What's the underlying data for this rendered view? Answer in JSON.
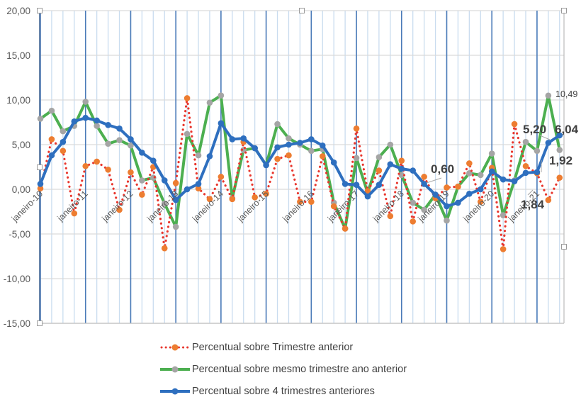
{
  "chart_data": {
    "type": "line",
    "title": "",
    "xlabel": "",
    "ylabel": "",
    "ylim": [
      -15,
      20
    ],
    "yticks": [
      "20,00",
      "15,00",
      "10,00",
      "5,00",
      "0,00",
      "-5,00",
      "-10,00",
      "-15,00"
    ],
    "ytick_values": [
      20,
      15,
      10,
      5,
      0,
      -5,
      -10,
      -15
    ],
    "xtick_labels": [
      "janeiro-10",
      "janeiro-11",
      "janeiro-12",
      "janeiro-13",
      "janeiro-14",
      "janeiro-15",
      "janeiro-16",
      "janeiro-17",
      "janeiro-18",
      "janeiro-19",
      "janeiro-20",
      "janeiro-21"
    ],
    "x_frequency": "quarterly, Q1 2010 to Q3 2021",
    "grid": true,
    "legend_position": "bottom",
    "series": [
      {
        "name": "Percentual sobre Trimestre anterior",
        "color": "#e8362d",
        "marker_color": "#ed7d31",
        "style": "dotted",
        "values": [
          0.1,
          5.6,
          4.3,
          -2.7,
          2.6,
          3.1,
          2.2,
          -2.3,
          1.9,
          -0.6,
          2.5,
          -6.6,
          0.7,
          10.2,
          0.1,
          -1.1,
          1.4,
          -1.1,
          5.3,
          -0.9,
          -0.5,
          3.4,
          3.8,
          -1.4,
          -1.4,
          3.7,
          -1.9,
          -4.4,
          6.8,
          -0.2,
          2.1,
          -3.0,
          3.2,
          -3.6,
          1.4,
          -1.0,
          0.2,
          0.3,
          2.9,
          -1.4,
          2.4,
          -6.7,
          7.3,
          2.6,
          1.8,
          -1.2,
          1.3
        ]
      },
      {
        "name": "Percentual sobre mesmo trimestre ano anterior",
        "color": "#4caf50",
        "marker_color": "#a5a5a5",
        "style": "solid",
        "values": [
          7.9,
          8.8,
          6.5,
          7.1,
          9.8,
          7.1,
          5.1,
          5.5,
          4.9,
          1.0,
          1.3,
          -1.6,
          -4.2,
          6.2,
          3.8,
          9.7,
          10.5,
          -1.0,
          4.4,
          4.6,
          2.7,
          7.3,
          5.7,
          5.0,
          4.3,
          4.5,
          -1.5,
          -4.4,
          3.5,
          -0.4,
          3.6,
          5.0,
          1.6,
          -1.5,
          -2.3,
          -0.6,
          -3.5,
          0.3,
          1.8,
          1.6,
          4.0,
          -2.9,
          1.0,
          5.3,
          4.3,
          10.49,
          4.4
        ]
      },
      {
        "name": "Percentual sobre 4 trimestres anteriores",
        "color": "#2e6fbf",
        "marker_color": "#2e6fbf",
        "style": "solid",
        "values": [
          0.6,
          3.8,
          5.3,
          7.6,
          8.0,
          7.7,
          7.2,
          6.8,
          5.6,
          4.1,
          3.2,
          1.0,
          -1.2,
          0.0,
          0.6,
          3.7,
          7.4,
          5.6,
          5.7,
          4.6,
          2.7,
          4.7,
          5.0,
          5.2,
          5.6,
          4.9,
          3.0,
          0.6,
          0.5,
          -0.8,
          0.5,
          2.8,
          2.3,
          2.1,
          0.6,
          -0.6,
          -1.9,
          -1.5,
          -0.5,
          0.0,
          2.0,
          1.1,
          0.9,
          1.84,
          1.92,
          5.2,
          6.04
        ]
      }
    ],
    "annotations": [
      {
        "text": "0,60",
        "series": 2,
        "index": 34,
        "bold": true
      },
      {
        "text": "1,84",
        "series": 2,
        "index": 43,
        "bold": true
      },
      {
        "text": "1,92",
        "series": 2,
        "index": 44,
        "bold": true
      },
      {
        "text": "5,20",
        "series": 2,
        "index": 45,
        "bold": true
      },
      {
        "text": "6,04",
        "series": 2,
        "index": 46,
        "bold": true
      },
      {
        "text": "10,49",
        "series": 1,
        "index": 45,
        "bold": false
      }
    ]
  },
  "legend": {
    "items": [
      {
        "label": "Percentual sobre Trimestre anterior"
      },
      {
        "label": "Percentual sobre mesmo trimestre ano anterior"
      },
      {
        "label": "Percentual sobre 4 trimestres anteriores"
      }
    ]
  }
}
